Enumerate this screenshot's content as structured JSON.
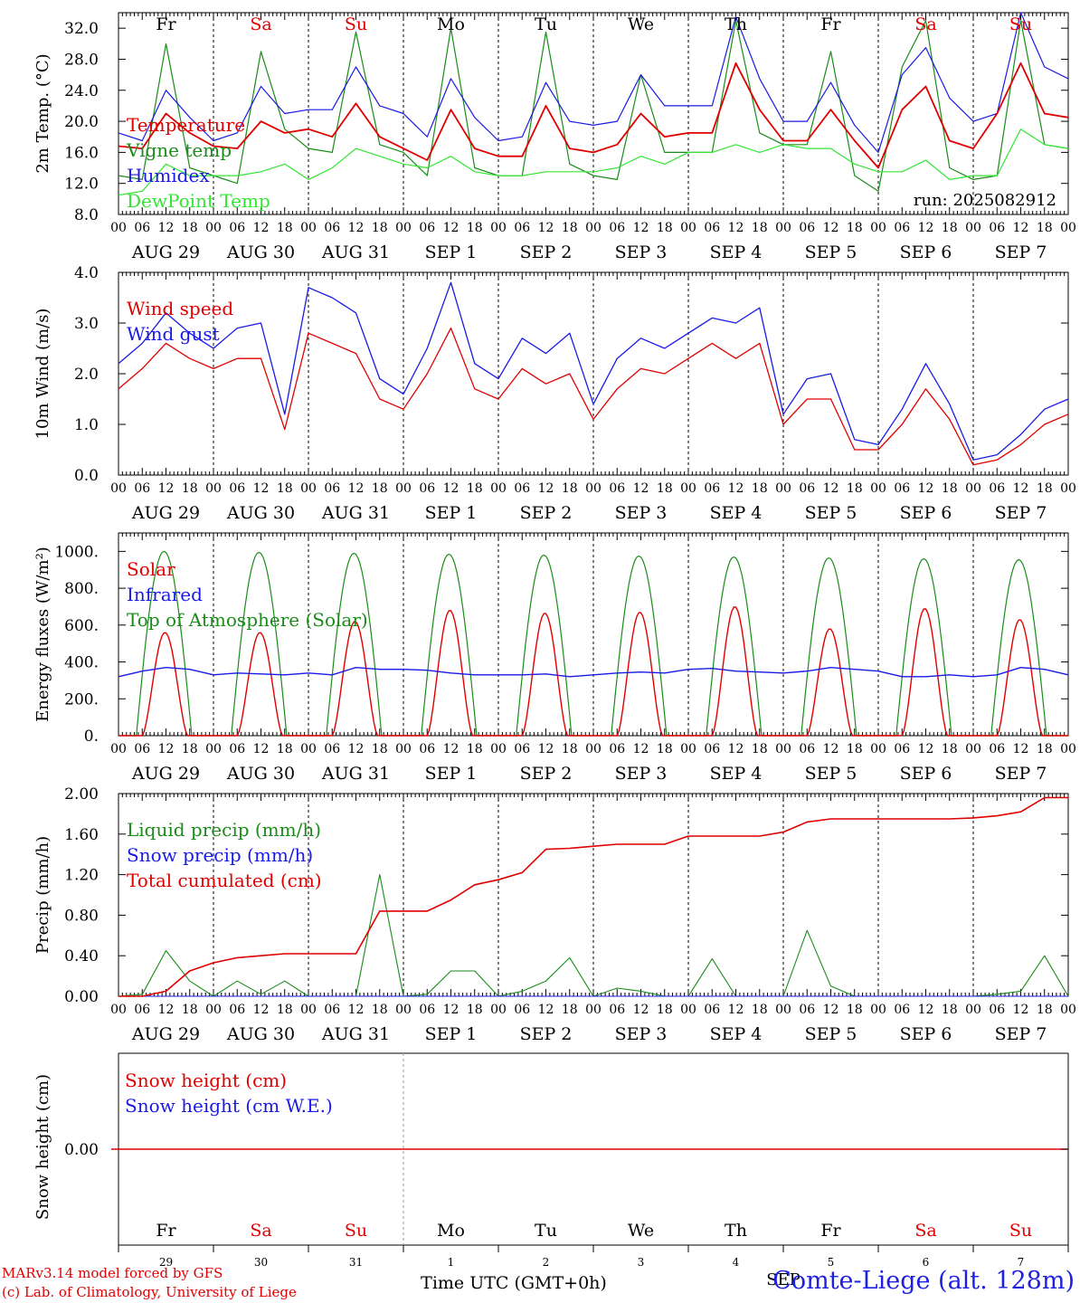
{
  "footer": {
    "credit_line1": "MARv3.14 model forced by GFS",
    "credit_line2": "(c) Lab. of Climatology, University of Liege",
    "station": "Comte-Liege (alt. 128m)",
    "xaxis_title": "Time UTC (GMT+0h)",
    "month_label": "SEP",
    "run_label": "run: 2025082912"
  },
  "colors": {
    "red": "#e00000",
    "dark_green": "#1a8c1a",
    "blue": "#1a1ae6",
    "light_green": "#33e633",
    "weekend": "#e00000",
    "weekday": "#000000"
  },
  "day_names": [
    "Fr",
    "Sa",
    "Su",
    "Mo",
    "Tu",
    "We",
    "Th",
    "Fr",
    "Sa",
    "Su"
  ],
  "weekend_flags": [
    false,
    true,
    true,
    false,
    false,
    false,
    false,
    false,
    true,
    true
  ],
  "date_labels": [
    "AUG 29",
    "AUG 30",
    "AUG 31",
    "SEP  1",
    "SEP  2",
    "SEP  3",
    "SEP  4",
    "SEP  5",
    "SEP  6",
    "SEP  7"
  ],
  "day_numbers": [
    "29",
    "30",
    "31",
    "1",
    "2",
    "3",
    "4",
    "5",
    "6",
    "7"
  ],
  "hour_labels": [
    "00",
    "06",
    "12",
    "18"
  ],
  "chart_data": [
    {
      "type": "line",
      "ylabel": "2m Temp. (°C)",
      "ylim": [
        8,
        34
      ],
      "yticks": [
        "8.0",
        "12.0",
        "16.0",
        "20.0",
        "24.0",
        "28.0",
        "32.0"
      ],
      "x_unit": "days from 2025-08-29 00 UTC",
      "x": [
        0,
        0.25,
        0.5,
        0.75,
        1,
        1.25,
        1.5,
        1.75,
        2,
        2.25,
        2.5,
        2.75,
        3,
        3.25,
        3.5,
        3.75,
        4,
        4.25,
        4.5,
        4.75,
        5,
        5.25,
        5.5,
        5.75,
        6,
        6.25,
        6.5,
        6.75,
        7,
        7.25,
        7.5,
        7.75,
        8,
        8.25,
        8.5,
        8.75,
        9,
        9.25,
        9.5,
        9.75,
        10
      ],
      "series": [
        {
          "name": "Temperature",
          "color_key": "red",
          "values": [
            16.8,
            16.5,
            21,
            18.5,
            16.8,
            16.5,
            20,
            18.5,
            19,
            18,
            22.3,
            18,
            16.5,
            15,
            21.5,
            16.5,
            15.5,
            15.5,
            22,
            16.5,
            16,
            17,
            21,
            18,
            18.5,
            18.5,
            27.5,
            21.5,
            17.5,
            17.5,
            21.5,
            17.5,
            14,
            21.5,
            24.5,
            17.5,
            16.5,
            21,
            27.5,
            21,
            20.5
          ]
        },
        {
          "name": "Vigne temp",
          "color_key": "dark_green",
          "values": [
            13,
            12.5,
            30,
            14,
            13,
            12,
            29,
            19,
            16.5,
            16,
            31.5,
            17,
            16,
            13,
            32,
            14,
            13,
            13,
            31.5,
            14.5,
            13,
            12.5,
            26,
            16,
            16,
            16,
            33,
            18.5,
            17,
            17,
            29,
            13,
            11,
            27,
            33,
            14,
            12.5,
            13,
            33,
            17,
            16.5
          ]
        },
        {
          "name": "Humidex",
          "color_key": "blue",
          "values": [
            18.5,
            17.5,
            24,
            20.5,
            17.5,
            18.5,
            24.5,
            21,
            21.5,
            21.5,
            27,
            22,
            21,
            18,
            25.5,
            20.5,
            17.5,
            18,
            25,
            20,
            19.5,
            20,
            26,
            22,
            22,
            22,
            33.5,
            25.5,
            20,
            20,
            25,
            19.5,
            16,
            26,
            29.5,
            23,
            20,
            21,
            34,
            27,
            25.5
          ]
        },
        {
          "name": "DewPoint Temp",
          "color_key": "light_green",
          "values": [
            10.5,
            11,
            14.5,
            13,
            13,
            13,
            13.5,
            14.5,
            12.5,
            14,
            16.5,
            15.5,
            14.5,
            14,
            15.5,
            13.5,
            13,
            13,
            13.5,
            13.5,
            13.5,
            14,
            15.5,
            14.5,
            16,
            16,
            17,
            16,
            17,
            16.5,
            16.5,
            14.5,
            13.5,
            13.5,
            15,
            12.5,
            13,
            13,
            19,
            17,
            16.5
          ]
        }
      ]
    },
    {
      "type": "line",
      "ylabel": "10m Wind (m/s)",
      "ylim": [
        0,
        4
      ],
      "yticks": [
        "0.0",
        "1.0",
        "2.0",
        "3.0",
        "4.0"
      ],
      "x_unit": "days from 2025-08-29 00 UTC",
      "x": [
        0,
        0.25,
        0.5,
        0.75,
        1,
        1.25,
        1.5,
        1.75,
        2,
        2.25,
        2.5,
        2.75,
        3,
        3.25,
        3.5,
        3.75,
        4,
        4.25,
        4.5,
        4.75,
        5,
        5.25,
        5.5,
        5.75,
        6,
        6.25,
        6.5,
        6.75,
        7,
        7.25,
        7.5,
        7.75,
        8,
        8.25,
        8.5,
        8.75,
        9,
        9.25,
        9.5,
        9.75,
        10
      ],
      "series": [
        {
          "name": "Wind speed",
          "color_key": "red",
          "values": [
            1.7,
            2.1,
            2.6,
            2.3,
            2.1,
            2.3,
            2.3,
            0.9,
            2.8,
            2.6,
            2.4,
            1.5,
            1.3,
            2.0,
            2.9,
            1.7,
            1.5,
            2.1,
            1.8,
            2.0,
            1.1,
            1.7,
            2.1,
            2.0,
            2.3,
            2.6,
            2.3,
            2.6,
            1.0,
            1.5,
            1.5,
            0.5,
            0.5,
            1.0,
            1.7,
            1.1,
            0.2,
            0.3,
            0.6,
            1.0,
            1.2
          ]
        },
        {
          "name": "Wind gust",
          "color_key": "blue",
          "values": [
            2.2,
            2.6,
            3.2,
            2.8,
            2.5,
            2.9,
            3.0,
            1.2,
            3.7,
            3.5,
            3.2,
            1.9,
            1.6,
            2.5,
            3.8,
            2.2,
            1.9,
            2.7,
            2.4,
            2.8,
            1.4,
            2.3,
            2.7,
            2.5,
            2.8,
            3.1,
            3.0,
            3.3,
            1.2,
            1.9,
            2.0,
            0.7,
            0.6,
            1.3,
            2.2,
            1.4,
            0.3,
            0.4,
            0.8,
            1.3,
            1.5
          ]
        }
      ]
    },
    {
      "type": "line",
      "ylabel": "Energy fluxes (W/m²)",
      "ylim": [
        0,
        1100
      ],
      "yticks": [
        "0.",
        "200.",
        "400.",
        "600.",
        "800.",
        "1000."
      ],
      "x_unit": "days from 2025-08-29 00 UTC",
      "peaks": {
        "top_of_atmosphere": [
          1000,
          995,
          990,
          985,
          980,
          975,
          970,
          965,
          960,
          955
        ],
        "solar": [
          560,
          560,
          620,
          680,
          665,
          670,
          700,
          580,
          690,
          630
        ]
      },
      "infrared_values": [
        320,
        350,
        370,
        360,
        330,
        340,
        335,
        330,
        340,
        330,
        370,
        360,
        360,
        355,
        340,
        330,
        330,
        330,
        335,
        320,
        330,
        340,
        345,
        340,
        360,
        365,
        350,
        345,
        340,
        350,
        370,
        360,
        350,
        320,
        320,
        330,
        320,
        330,
        370,
        360,
        330
      ],
      "series": [
        {
          "name": "Solar",
          "color_key": "red"
        },
        {
          "name": "Infrared",
          "color_key": "blue"
        },
        {
          "name": "Top of Atmosphere (Solar)",
          "color_key": "dark_green"
        }
      ]
    },
    {
      "type": "line",
      "ylabel": "Precip (mm/h)",
      "ylim": [
        0,
        2.0
      ],
      "yticks": [
        "0.00",
        "0.40",
        "0.80",
        "1.20",
        "1.60",
        "2.00"
      ],
      "x_unit": "days from 2025-08-29 00 UTC",
      "x": [
        0,
        0.25,
        0.5,
        0.75,
        1,
        1.25,
        1.5,
        1.75,
        2,
        2.25,
        2.5,
        2.75,
        3,
        3.25,
        3.5,
        3.75,
        4,
        4.25,
        4.5,
        4.75,
        5,
        5.25,
        5.5,
        5.75,
        6,
        6.25,
        6.5,
        6.75,
        7,
        7.25,
        7.5,
        7.75,
        8,
        8.25,
        8.5,
        8.75,
        9,
        9.25,
        9.5,
        9.75,
        10
      ],
      "series": [
        {
          "name": "Liquid precip (mm/h)",
          "color_key": "dark_green",
          "values": [
            0,
            0.02,
            0.45,
            0.15,
            0,
            0.15,
            0.02,
            0.15,
            0,
            0,
            0,
            1.2,
            0,
            0.02,
            0.25,
            0.25,
            0,
            0.05,
            0.15,
            0.38,
            0,
            0.08,
            0.05,
            0,
            0,
            0.37,
            0,
            0,
            0,
            0.65,
            0.1,
            0,
            0,
            0,
            0,
            0,
            0,
            0.02,
            0.05,
            0.4,
            0
          ]
        },
        {
          "name": "Snow precip (mm/h)",
          "color_key": "blue",
          "values": [
            0,
            0,
            0,
            0,
            0,
            0,
            0,
            0,
            0,
            0,
            0,
            0,
            0,
            0,
            0,
            0,
            0,
            0,
            0,
            0,
            0,
            0,
            0,
            0,
            0,
            0,
            0,
            0,
            0,
            0,
            0,
            0,
            0,
            0,
            0,
            0,
            0,
            0,
            0,
            0,
            0
          ]
        },
        {
          "name": "Total cumulated (cm)",
          "color_key": "red",
          "values": [
            0,
            0,
            0.05,
            0.25,
            0.33,
            0.38,
            0.4,
            0.42,
            0.42,
            0.42,
            0.42,
            0.84,
            0.84,
            0.84,
            0.95,
            1.1,
            1.15,
            1.22,
            1.45,
            1.46,
            1.48,
            1.5,
            1.5,
            1.5,
            1.58,
            1.58,
            1.58,
            1.58,
            1.62,
            1.72,
            1.75,
            1.75,
            1.75,
            1.75,
            1.75,
            1.75,
            1.76,
            1.78,
            1.82,
            1.96,
            1.96
          ]
        }
      ]
    },
    {
      "type": "line",
      "ylabel": "Snow height (cm)",
      "yticks": [
        "0.00"
      ],
      "series": [
        {
          "name": "Snow height (cm)",
          "color_key": "red",
          "values": [
            0,
            0
          ]
        },
        {
          "name": "Snow height (cm W.E.)",
          "color_key": "blue",
          "values": [
            0,
            0
          ]
        }
      ]
    }
  ]
}
